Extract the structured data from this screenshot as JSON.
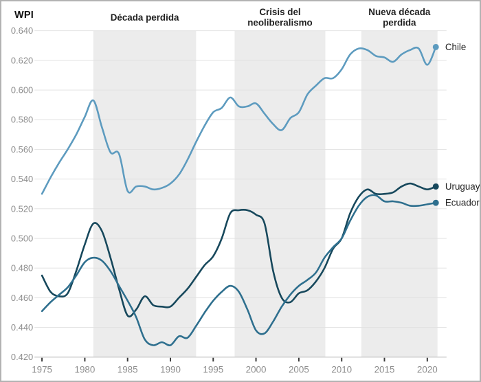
{
  "chart": {
    "y_axis_title": "WPI"
  },
  "colors": {
    "band": "#ececec",
    "grid": "#e0e0e0",
    "axis_text": "#8e8e8e",
    "title_text": "#1f1f1f",
    "axis_line": "#c9c9c9",
    "tick": "#3a3a3a",
    "background": "#ffffff",
    "frame_border": "#b2b2b2",
    "chile": "#5d9bbf",
    "uruguay": "#17485c",
    "ecuador": "#2e6f8e"
  },
  "chart_data": {
    "type": "line",
    "title": "",
    "xlabel": "",
    "ylabel": "WPI",
    "xlim": [
      1975,
      2021
    ],
    "ylim": [
      0.42,
      0.64
    ],
    "ytick_step": 0.02,
    "xticks": [
      1975,
      1980,
      1985,
      1990,
      1995,
      2000,
      2005,
      2010,
      2015,
      2020
    ],
    "grid": true,
    "legend_position": "end-of-line-labels-right",
    "x": [
      1975,
      1976,
      1977,
      1978,
      1979,
      1980,
      1981,
      1982,
      1983,
      1984,
      1985,
      1986,
      1987,
      1988,
      1989,
      1990,
      1991,
      1992,
      1993,
      1994,
      1995,
      1996,
      1997,
      1998,
      1999,
      2000,
      2001,
      2002,
      2003,
      2004,
      2005,
      2006,
      2007,
      2008,
      2009,
      2010,
      2011,
      2012,
      2013,
      2014,
      2015,
      2016,
      2017,
      2018,
      2019,
      2020,
      2021
    ],
    "bands": [
      {
        "label_lines": [
          "Década perdida"
        ],
        "from": 1981,
        "to": 1993
      },
      {
        "label_lines": [
          "Crisis del",
          "neoliberalismo"
        ],
        "from": 1997.5,
        "to": 2008.1
      },
      {
        "label_lines": [
          "Nueva década",
          "perdida"
        ],
        "from": 2012.3,
        "to": 2021.2
      }
    ],
    "series": [
      {
        "name": "Chile",
        "color": "#5d9bbf",
        "values": [
          0.53,
          0.541,
          0.551,
          0.56,
          0.57,
          0.582,
          0.593,
          0.575,
          0.558,
          0.557,
          0.532,
          0.535,
          0.535,
          0.533,
          0.534,
          0.537,
          0.543,
          0.553,
          0.565,
          0.576,
          0.585,
          0.588,
          0.595,
          0.589,
          0.589,
          0.591,
          0.584,
          0.577,
          0.573,
          0.581,
          0.585,
          0.597,
          0.603,
          0.608,
          0.608,
          0.614,
          0.624,
          0.628,
          0.627,
          0.623,
          0.622,
          0.619,
          0.624,
          0.627,
          0.628,
          0.617,
          0.629
        ]
      },
      {
        "name": "Uruguay",
        "color": "#17485c",
        "values": [
          0.475,
          0.464,
          0.461,
          0.463,
          0.478,
          0.496,
          0.51,
          0.505,
          0.487,
          0.466,
          0.448,
          0.452,
          0.461,
          0.455,
          0.454,
          0.454,
          0.46,
          0.466,
          0.474,
          0.482,
          0.488,
          0.5,
          0.517,
          0.519,
          0.519,
          0.516,
          0.51,
          0.478,
          0.46,
          0.457,
          0.463,
          0.465,
          0.471,
          0.48,
          0.493,
          0.5,
          0.517,
          0.528,
          0.533,
          0.53,
          0.53,
          0.531,
          0.535,
          0.537,
          0.535,
          0.533,
          0.535
        ]
      },
      {
        "name": "Ecuador",
        "color": "#2e6f8e",
        "values": [
          0.451,
          0.457,
          0.462,
          0.467,
          0.475,
          0.484,
          0.487,
          0.485,
          0.478,
          0.468,
          0.458,
          0.447,
          0.432,
          0.428,
          0.43,
          0.428,
          0.434,
          0.433,
          0.441,
          0.45,
          0.458,
          0.464,
          0.468,
          0.464,
          0.452,
          0.438,
          0.436,
          0.444,
          0.454,
          0.462,
          0.468,
          0.472,
          0.477,
          0.487,
          0.494,
          0.5,
          0.512,
          0.522,
          0.528,
          0.529,
          0.525,
          0.525,
          0.524,
          0.522,
          0.522,
          0.523,
          0.524
        ]
      }
    ]
  }
}
